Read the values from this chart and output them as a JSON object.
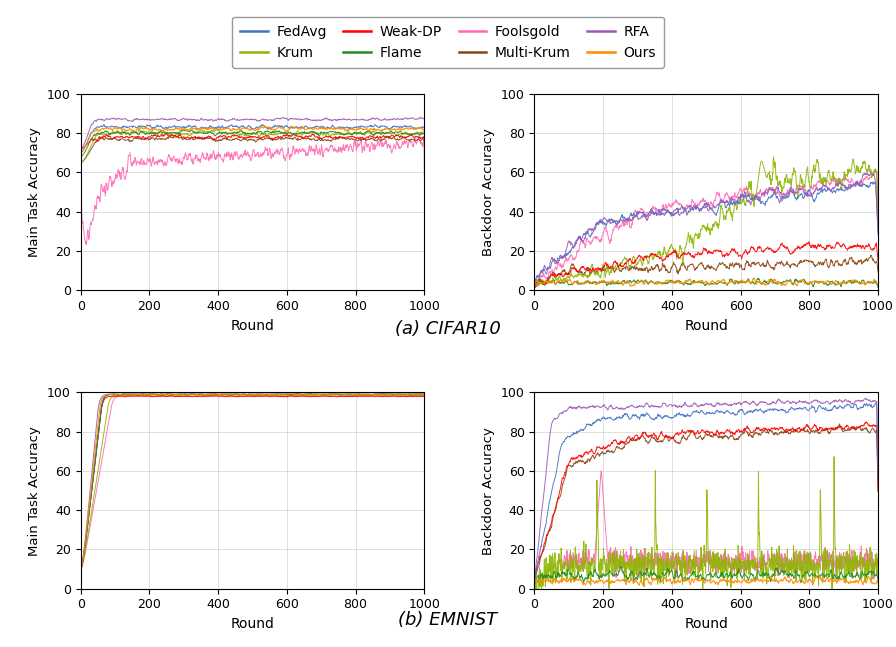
{
  "legend_entries": [
    {
      "label": "FedAvg",
      "color": "#4472C4"
    },
    {
      "label": "Krum",
      "color": "#8db600"
    },
    {
      "label": "Weak-DP",
      "color": "#FF0000"
    },
    {
      "label": "Flame",
      "color": "#228B22"
    },
    {
      "label": "Foolsgold",
      "color": "#FF69B4"
    },
    {
      "label": "Multi-Krum",
      "color": "#8B4513"
    },
    {
      "label": "RFA",
      "color": "#9B59B6"
    },
    {
      "label": "Ours",
      "color": "#FF8C00"
    }
  ],
  "xlabel": "Round",
  "ylabel_main": "Main Task Accuracy",
  "ylabel_back": "Backdoor Accuracy",
  "title_a": "(a) CIFAR10",
  "title_b": "(b) EMNIST",
  "xlim": [
    0,
    1000
  ],
  "ylim": [
    0,
    100
  ],
  "xticks": [
    0,
    200,
    400,
    600,
    800,
    1000
  ],
  "yticks": [
    0,
    20,
    40,
    60,
    80,
    100
  ],
  "figsize": [
    8.96,
    6.47
  ],
  "dpi": 100
}
